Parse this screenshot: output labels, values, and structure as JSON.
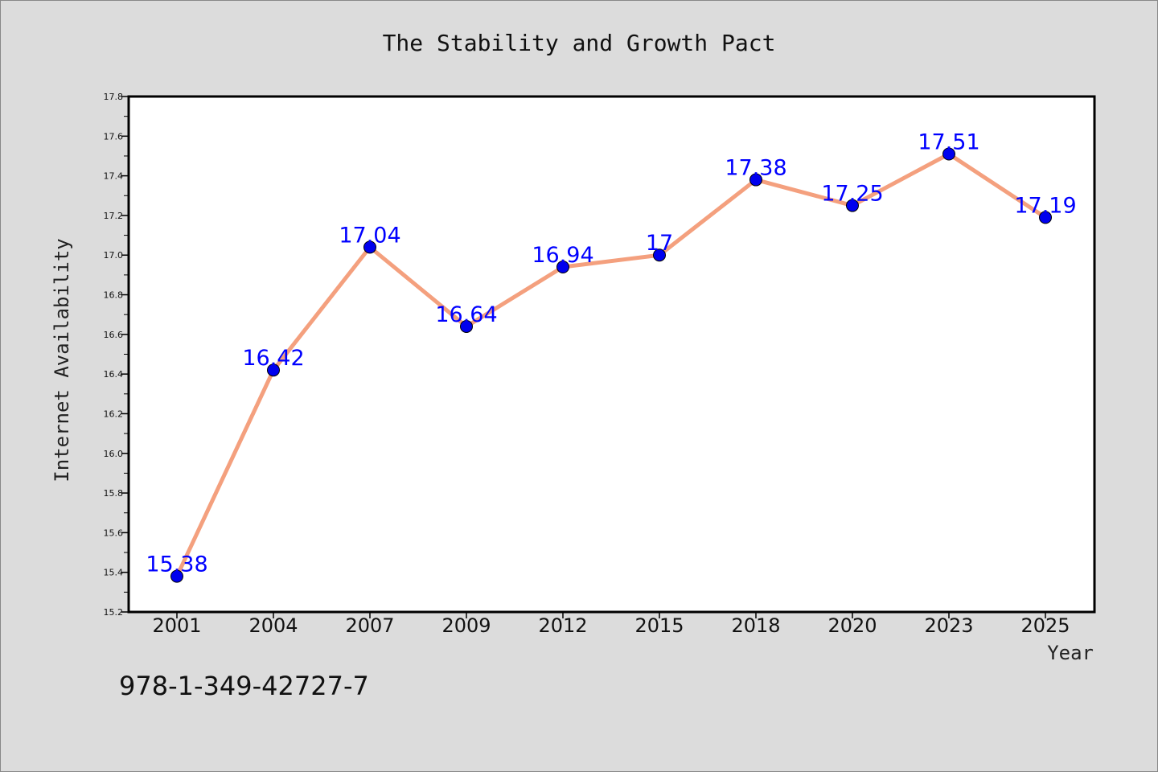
{
  "colors": {
    "background": "#dcdcdc",
    "plot_background": "#ffffff",
    "line": "#f4a07e",
    "marker_fill": "#0000ee",
    "data_label": "#0000ff"
  },
  "chart_data": {
    "type": "line",
    "title": "The Stability and Growth Pact",
    "xlabel": "Year",
    "ylabel": "Internet Availability",
    "categories": [
      "2001",
      "2004",
      "2007",
      "2009",
      "2012",
      "2015",
      "2018",
      "2020",
      "2023",
      "2025"
    ],
    "series": [
      {
        "values": [
          15.38,
          16.42,
          17.04,
          16.64,
          16.94,
          17,
          17.38,
          17.25,
          17.51,
          17.19
        ],
        "labels": [
          "15.38",
          "16.42",
          "17.04",
          "16.64",
          "16.94",
          "17",
          "17.38",
          "17.25",
          "17.51",
          "17.19"
        ]
      }
    ],
    "ylim": [
      15.2,
      17.8
    ],
    "yticks": [
      "15.2",
      "15.4",
      "15.6",
      "15.8",
      "16.0",
      "16.2",
      "16.4",
      "16.6",
      "16.8",
      "17.0",
      "17.2",
      "17.4",
      "17.6",
      "17.8"
    ],
    "grid": false,
    "legend": false
  },
  "annotation": "978-1-349-42727-7"
}
